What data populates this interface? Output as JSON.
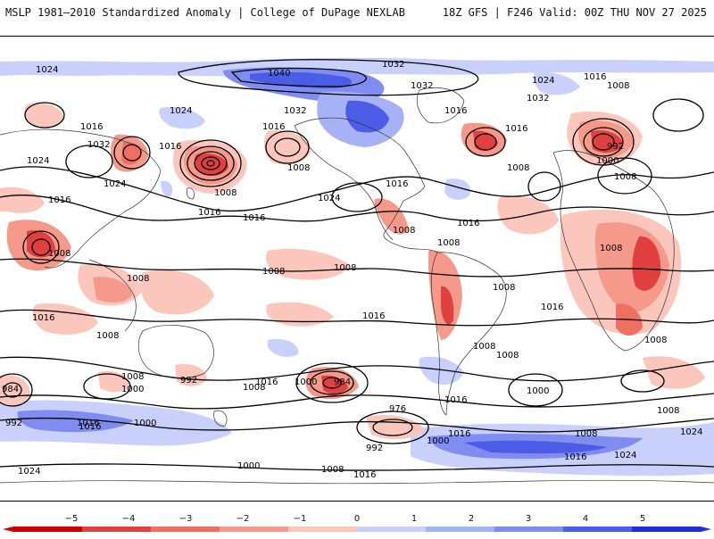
{
  "header": {
    "title": "MSLP 1981–2010 Standardized Anomaly | College of DuPage NEXLAB",
    "run_info": "18Z GFS | F246 Valid: 00Z THU NOV 27 2025"
  },
  "colors": {
    "neg5": "#cc0000",
    "neg4": "#e04040",
    "neg3": "#ee7060",
    "neg2": "#f59a8a",
    "neg1": "#fbc6bb",
    "zero": "#ffffff",
    "pos1": "#c9d0fb",
    "pos2": "#a7b1f6",
    "pos3": "#7f8cf0",
    "pos4": "#4b5ce6",
    "pos5": "#1f2ed8"
  },
  "colorbar": {
    "ticks": [
      "−5",
      "−4",
      "−3",
      "−2",
      "−1",
      "0",
      "1",
      "2",
      "3",
      "4",
      "5"
    ]
  },
  "isobar_labels": [
    "1024",
    "1040",
    "1032",
    "1032",
    "1032",
    "1032",
    "1024",
    "1016",
    "1008",
    "1016",
    "1016",
    "1032",
    "1024",
    "1016",
    "1016",
    "1016",
    "1024",
    "1008",
    "1016",
    "1024",
    "1024",
    "1016",
    "1008",
    "1008",
    "1016",
    "992",
    "1000",
    "1008",
    "1008",
    "1016",
    "1008",
    "1008",
    "1008",
    "1016",
    "1016",
    "1008",
    "1008",
    "1016",
    "1008",
    "1008",
    "1008",
    "1016",
    "1008",
    "1016",
    "1000",
    "1008",
    "1008",
    "992",
    "1000",
    "1016",
    "984",
    "976",
    "1000",
    "1000",
    "1016",
    "1008",
    "1008",
    "984",
    "992",
    "1000",
    "1016",
    "1024",
    "1016",
    "1000",
    "1008",
    "992",
    "1016",
    "1024",
    "1008",
    "1016",
    "1024",
    "1008"
  ]
}
